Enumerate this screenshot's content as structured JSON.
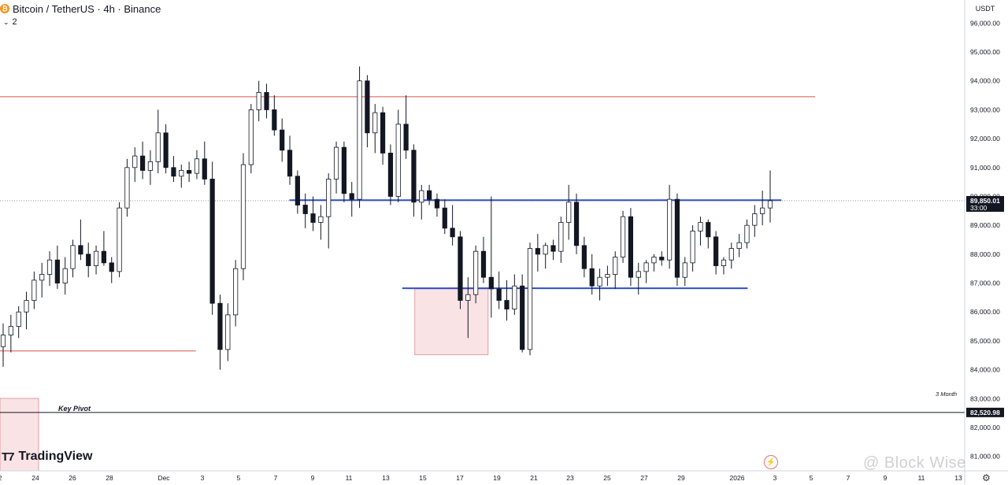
{
  "header": {
    "symbol": "Bitcoin / TetherUS · 4h · Binance",
    "indicator_count": "2",
    "currency": "USDT"
  },
  "branding": {
    "tradingview": "TradingView",
    "watermark": "@ Block Wise"
  },
  "annotations": {
    "key_pivot": "Key Pivot",
    "three_month": "3 Month"
  },
  "price_axis": {
    "ticks": [
      "96,000.00",
      "95,000.00",
      "94,000.00",
      "93,000.00",
      "92,000.00",
      "91,000.00",
      "90,000.00",
      "89,000.00",
      "88,000.00",
      "87,000.00",
      "86,000.00",
      "85,000.00",
      "84,000.00",
      "83,000.00",
      "82,000.00",
      "81,000.00"
    ],
    "current_price_label": "89,850.01",
    "countdown_label": "33:00",
    "lower_marker_label": "82,520.98"
  },
  "time_axis": {
    "ticks": [
      "2",
      "24",
      "26",
      "28",
      "Dec",
      "3",
      "5",
      "7",
      "9",
      "11",
      "13",
      "15",
      "17",
      "19",
      "21",
      "23",
      "25",
      "27",
      "29",
      "2026",
      "3",
      "5",
      "7",
      "9",
      "11",
      "13"
    ]
  },
  "colors": {
    "candle": "#131722",
    "support_resistance": "#2f4fc8",
    "key_level": "#d9534f",
    "zone_fill": "rgba(234,143,150,0.25)",
    "zone_stroke": "#d98a94"
  },
  "chart_data": {
    "type": "candlestick",
    "series": [
      {
        "ohlc": [
          [
            84800,
            85600,
            84100,
            85200
          ],
          [
            85200,
            85900,
            84600,
            85500
          ],
          [
            85500,
            86200,
            85100,
            86000
          ],
          [
            86000,
            86700,
            85400,
            86400
          ],
          [
            86400,
            87400,
            86100,
            87100
          ],
          [
            87100,
            87700,
            86500,
            87300
          ],
          [
            87300,
            88100,
            86900,
            87800
          ],
          [
            87800,
            88300,
            86800,
            87000
          ],
          [
            87000,
            87900,
            86600,
            87500
          ],
          [
            87500,
            88500,
            87200,
            88300
          ],
          [
            88300,
            89200,
            87800,
            88000
          ],
          [
            88000,
            88400,
            87200,
            87600
          ],
          [
            87600,
            88300,
            87300,
            88100
          ],
          [
            88100,
            88800,
            87600,
            87700
          ],
          [
            87700,
            87900,
            87000,
            87400
          ],
          [
            87400,
            89800,
            87200,
            89600
          ],
          [
            89600,
            91300,
            89300,
            91000
          ],
          [
            91000,
            91700,
            90500,
            91400
          ],
          [
            91400,
            91900,
            90600,
            90900
          ],
          [
            90900,
            91600,
            90400,
            91200
          ],
          [
            91200,
            93000,
            90800,
            92200
          ],
          [
            92200,
            92500,
            90800,
            91000
          ],
          [
            91000,
            91400,
            90500,
            90700
          ],
          [
            90700,
            91100,
            90300,
            90900
          ],
          [
            90900,
            91200,
            90500,
            90800
          ],
          [
            90800,
            91600,
            90600,
            91300
          ],
          [
            91300,
            91900,
            90400,
            90600
          ],
          [
            90600,
            91200,
            85900,
            86300
          ],
          [
            86300,
            86600,
            84000,
            84700
          ],
          [
            84700,
            86300,
            84300,
            85900
          ],
          [
            85900,
            87800,
            85500,
            87500
          ],
          [
            87500,
            91500,
            87100,
            91100
          ],
          [
            91100,
            93200,
            90800,
            93000
          ],
          [
            93000,
            94000,
            92600,
            93600
          ],
          [
            93600,
            93900,
            92700,
            93000
          ],
          [
            93000,
            93500,
            92100,
            92300
          ],
          [
            92300,
            92700,
            91200,
            91600
          ],
          [
            91600,
            92100,
            90400,
            90700
          ],
          [
            90700,
            90900,
            89400,
            89700
          ],
          [
            89700,
            90100,
            88900,
            89400
          ],
          [
            89400,
            90000,
            88800,
            89100
          ],
          [
            89100,
            89700,
            88500,
            89300
          ],
          [
            89300,
            90800,
            88200,
            90600
          ],
          [
            90600,
            91900,
            90100,
            91700
          ],
          [
            91700,
            91900,
            89800,
            90100
          ],
          [
            90100,
            90500,
            89300,
            89900
          ],
          [
            89900,
            94500,
            89600,
            94000
          ],
          [
            94000,
            94200,
            91700,
            92200
          ],
          [
            92200,
            93200,
            91500,
            92900
          ],
          [
            92900,
            93100,
            91100,
            91500
          ],
          [
            91500,
            91800,
            89700,
            90000
          ],
          [
            90000,
            93000,
            89800,
            92500
          ],
          [
            92500,
            93500,
            91300,
            91600
          ],
          [
            91600,
            91800,
            89300,
            89800
          ],
          [
            89800,
            90400,
            89200,
            90200
          ],
          [
            90200,
            90400,
            89700,
            89900
          ],
          [
            89900,
            90100,
            89300,
            89600
          ],
          [
            89600,
            89900,
            88700,
            88900
          ],
          [
            88900,
            89700,
            88300,
            88600
          ],
          [
            88600,
            88800,
            86100,
            86400
          ],
          [
            86400,
            87200,
            85100,
            86600
          ],
          [
            86600,
            88300,
            86300,
            88100
          ],
          [
            88100,
            88600,
            87000,
            87200
          ],
          [
            87200,
            90000,
            85800,
            86800
          ],
          [
            86800,
            87400,
            86100,
            86400
          ],
          [
            86400,
            87100,
            85700,
            86100
          ],
          [
            86100,
            87300,
            85900,
            86900
          ],
          [
            86900,
            87300,
            84600,
            84700
          ],
          [
            84700,
            88400,
            84500,
            88200
          ],
          [
            88200,
            88700,
            87400,
            88000
          ],
          [
            88000,
            88400,
            87500,
            88300
          ],
          [
            88300,
            88500,
            87800,
            88100
          ],
          [
            88100,
            89300,
            87700,
            89100
          ],
          [
            89100,
            90400,
            88500,
            89800
          ],
          [
            89800,
            90100,
            88000,
            88300
          ],
          [
            88300,
            88600,
            87200,
            87500
          ],
          [
            87500,
            88000,
            86600,
            86900
          ],
          [
            86900,
            87500,
            86400,
            87200
          ],
          [
            87200,
            87600,
            86900,
            87300
          ],
          [
            87300,
            88100,
            86800,
            87900
          ],
          [
            87900,
            89500,
            87700,
            89300
          ],
          [
            89300,
            89600,
            86900,
            87200
          ],
          [
            87200,
            87700,
            86600,
            87400
          ],
          [
            87400,
            87800,
            87000,
            87700
          ],
          [
            87700,
            88000,
            87400,
            87900
          ],
          [
            87900,
            88100,
            87600,
            87800
          ],
          [
            87800,
            90400,
            87500,
            89900
          ],
          [
            89900,
            90100,
            86900,
            87200
          ],
          [
            87200,
            87900,
            86900,
            87700
          ],
          [
            87700,
            89000,
            87400,
            88800
          ],
          [
            88800,
            89300,
            88300,
            89100
          ],
          [
            89100,
            89200,
            88200,
            88600
          ],
          [
            88600,
            88800,
            87300,
            87600
          ],
          [
            87600,
            87900,
            87300,
            87800
          ],
          [
            87800,
            88400,
            87500,
            88200
          ],
          [
            88200,
            88700,
            87900,
            88400
          ],
          [
            88400,
            89200,
            88200,
            89000
          ],
          [
            89000,
            89700,
            88600,
            89400
          ],
          [
            89400,
            90200,
            89000,
            89600
          ],
          [
            89600,
            90900,
            89100,
            89850
          ]
        ]
      }
    ],
    "y_range": [
      80500,
      96800
    ],
    "horizontal_levels": [
      {
        "price": 93450,
        "color": "key_level",
        "x_span": [
          0,
          0.845
        ]
      },
      {
        "price": 84650,
        "color": "key_level",
        "x_span": [
          0,
          0.203
        ]
      },
      {
        "price": 89870,
        "color": "support_resistance",
        "x_span": [
          0.3,
          0.81
        ]
      },
      {
        "price": 86820,
        "color": "support_resistance",
        "x_span": [
          0.417,
          0.775
        ]
      }
    ],
    "zones": [
      {
        "top": 86800,
        "bottom": 84520,
        "x_span": [
          0.43,
          0.506
        ]
      }
    ],
    "current_price": 89850.01,
    "lower_marker": 82520.98
  }
}
